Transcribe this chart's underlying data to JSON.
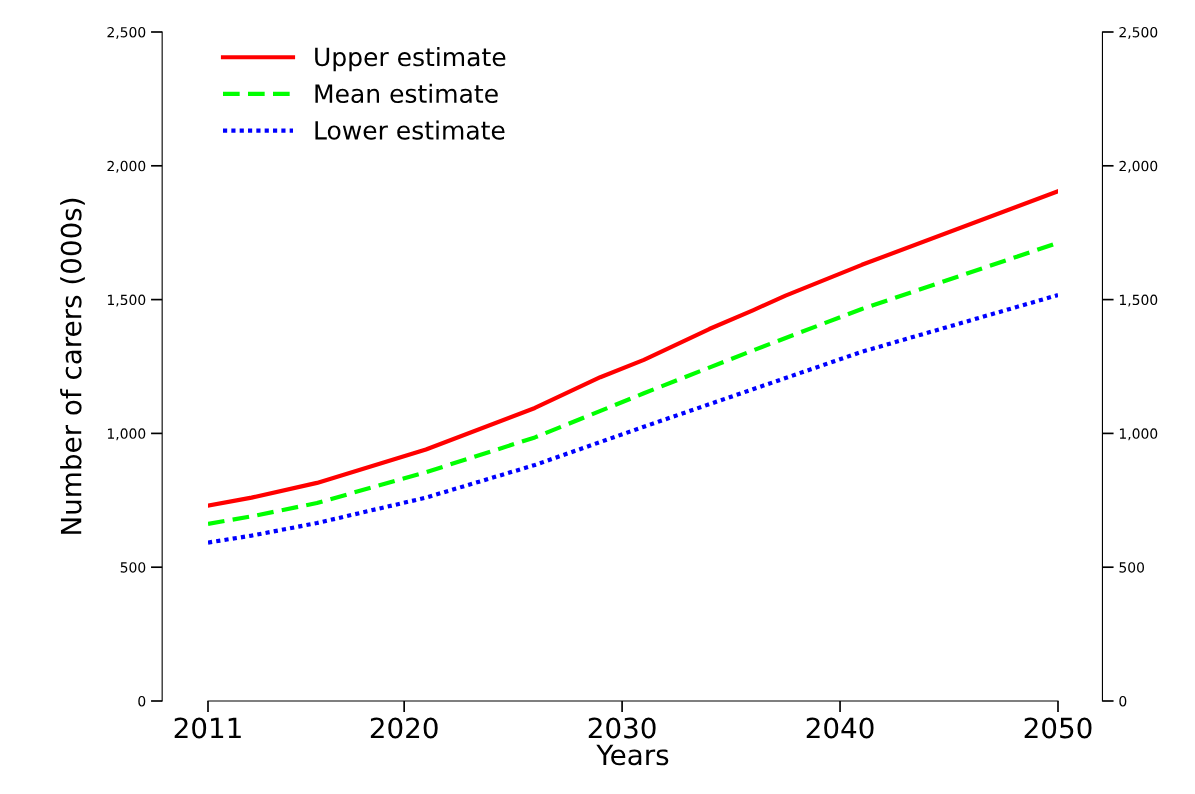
{
  "chart_data": {
    "type": "line",
    "xlabel": "Years",
    "ylabel": "Number of carers (000s)",
    "xlim": [
      2011,
      2050
    ],
    "xticks": [
      2011,
      2020,
      2030,
      2040,
      2050
    ],
    "ylim": [
      0,
      2500
    ],
    "yticks": [
      0,
      {
        "value": 500,
        "label": "500"
      },
      {
        "value": 1000,
        "label": "1,000"
      },
      {
        "value": 1500,
        "label": "1,500"
      },
      {
        "value": 2000,
        "label": "2,000"
      },
      {
        "value": 2500,
        "label": "2,500"
      }
    ],
    "y2lim": [
      0,
      2500
    ],
    "y2ticks": [
      0,
      {
        "value": 500,
        "label": "500"
      },
      {
        "value": 1000,
        "label": "1,000"
      },
      {
        "value": 1500,
        "label": "1,500"
      },
      {
        "value": 2000,
        "label": "2,000"
      },
      {
        "value": 2500,
        "label": "2,500"
      }
    ],
    "grid": false,
    "legend": "top left",
    "marker": "none",
    "series": [
      {
        "name": "Upper estimate",
        "color": "#ff0000",
        "line_style": "solid",
        "x": [
          2011,
          2013,
          2016,
          2021,
          2026,
          2029,
          2031,
          2034,
          2036,
          2037.5,
          2041,
          2050
        ],
        "values": [
          730,
          760,
          815,
          940,
          1095,
          1210,
          1275,
          1390,
          1460,
          1515,
          1630,
          1905
        ]
      },
      {
        "name": "Mean estimate",
        "color": "#00ff00",
        "line_style": "dashed",
        "x": [
          2011,
          2013,
          2016,
          2021,
          2026,
          2031,
          2036,
          2041,
          2050
        ],
        "values": [
          662,
          690,
          740,
          855,
          985,
          1150,
          1310,
          1465,
          1712
        ]
      },
      {
        "name": "Lower estimate",
        "color": "#0000ff",
        "line_style": "dotted",
        "x": [
          2011,
          2013,
          2016,
          2021,
          2026,
          2031,
          2036,
          2041,
          2050
        ],
        "values": [
          592,
          618,
          665,
          760,
          882,
          1025,
          1165,
          1305,
          1517
        ]
      }
    ]
  }
}
